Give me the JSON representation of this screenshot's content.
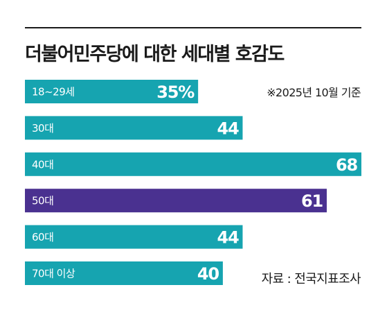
{
  "chart_data": {
    "type": "bar",
    "orientation": "horizontal",
    "title": "더불어민주당에 대한 세대별 호감도",
    "note": "※2025년 10월 기준",
    "source": "자료 : 전국지표조사",
    "categories": [
      "18~29세",
      "30대",
      "40대",
      "50대",
      "60대",
      "70대 이상"
    ],
    "values": [
      35,
      44,
      68,
      61,
      44,
      40
    ],
    "value_labels": [
      "35%",
      "44",
      "68",
      "61",
      "44",
      "40"
    ],
    "unit": "%",
    "xlim": [
      0,
      68
    ],
    "grid": false,
    "legend": "none",
    "colors": {
      "bar": "#16a4b0",
      "highlight": "#4a3190",
      "text_on_bar": "#ffffff",
      "ink": "#1a1a1a"
    },
    "highlight_category": "50대"
  }
}
